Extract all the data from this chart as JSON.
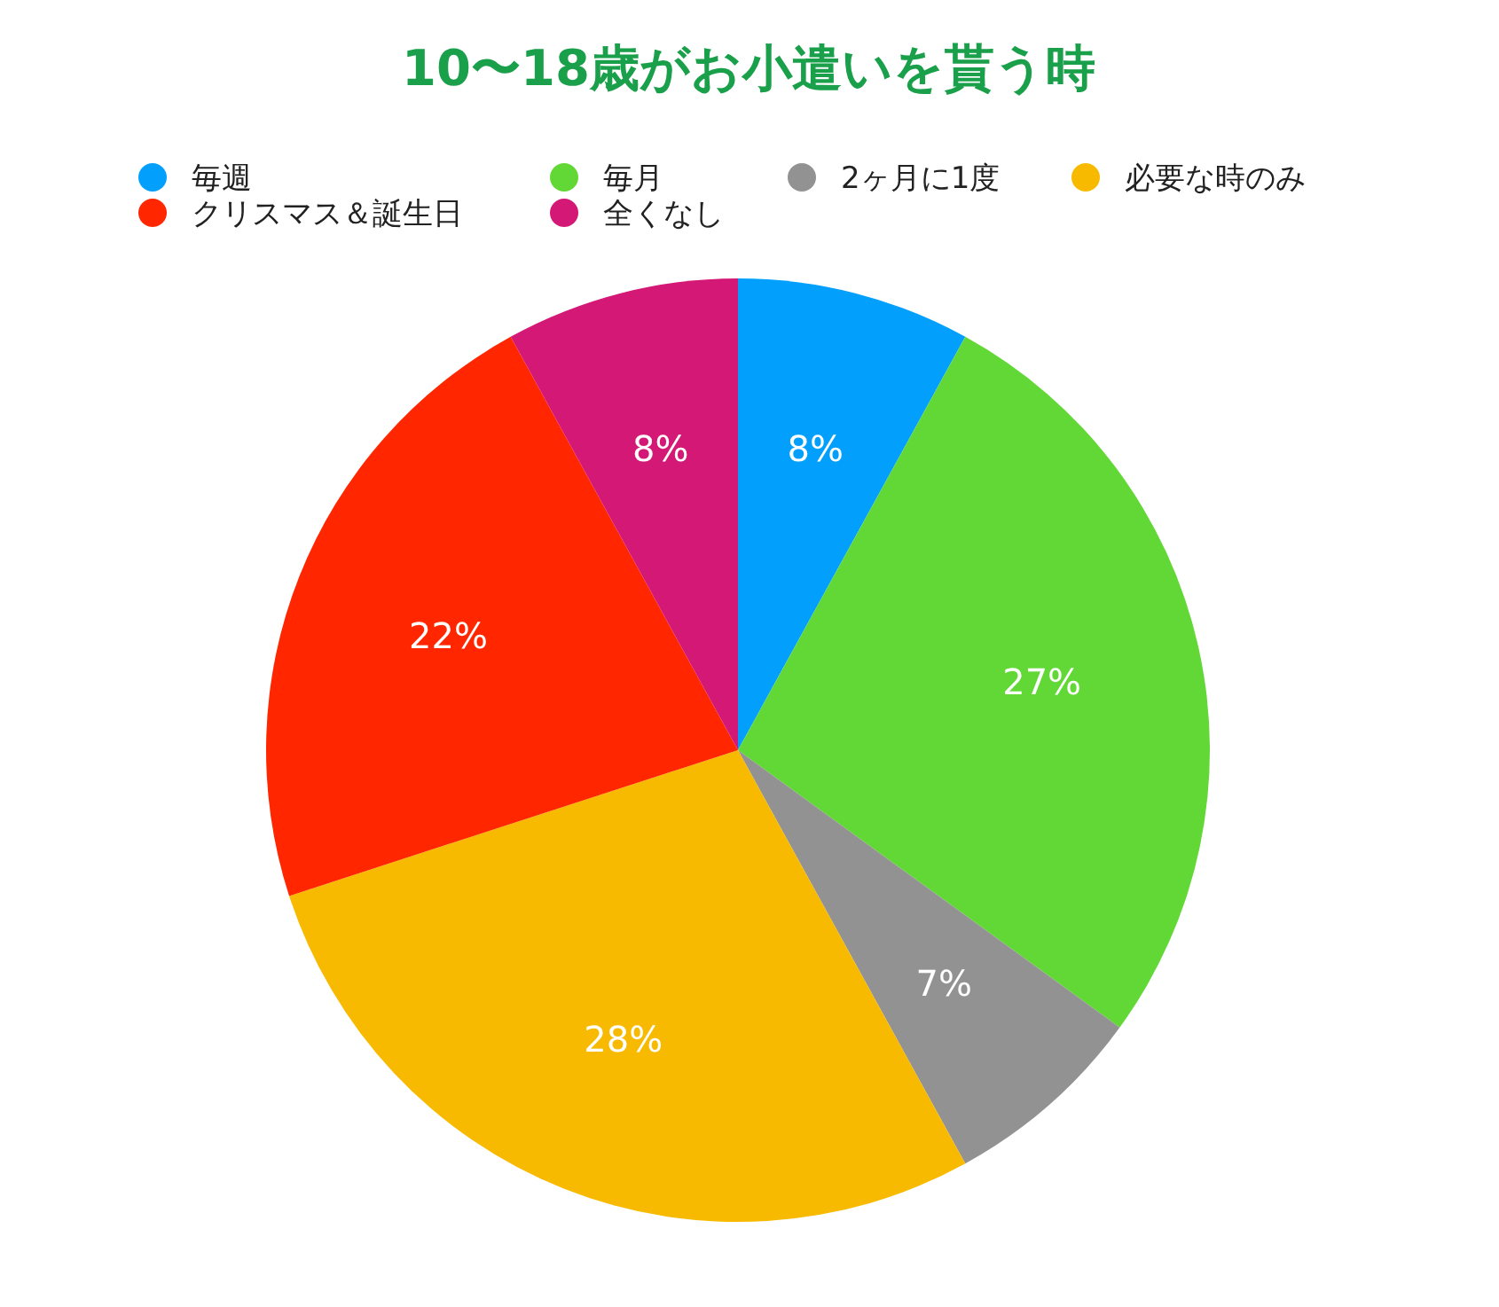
{
  "chart_data": {
    "type": "pie",
    "title": "10〜18歳がお小遣いを貰う時",
    "categories": [
      "毎週",
      "毎月",
      "2ヶ月に1度",
      "必要な時のみ",
      "クリスマス＆誕生日",
      "全くなし"
    ],
    "values": [
      8,
      27,
      7,
      28,
      22,
      8
    ],
    "value_labels": [
      "8%",
      "27%",
      "7%",
      "28%",
      "22%",
      "8%"
    ],
    "colors": [
      "#039ffd",
      "#62d836",
      "#929292",
      "#f8ba00",
      "#ff2600",
      "#d41876"
    ],
    "legend": "top"
  }
}
